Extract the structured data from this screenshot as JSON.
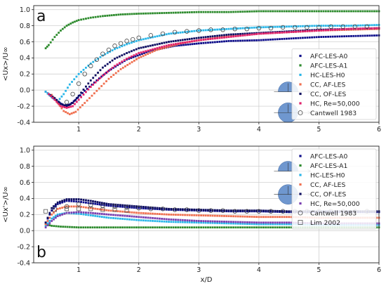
{
  "chart_data": [
    {
      "type": "scatter",
      "panel_label": "a",
      "xlabel": "",
      "ylabel": "<Ux>/U∞",
      "xlim": [
        0.25,
        6
      ],
      "ylim": [
        -0.4,
        1.05
      ],
      "xticks": [
        1,
        2,
        3,
        4,
        5,
        6
      ],
      "yticks": [
        -0.4,
        -0.2,
        0.0,
        0.2,
        0.4,
        0.6,
        0.8,
        1.0
      ],
      "tick_labels_x": [
        "1",
        "2",
        "3",
        "4",
        "5",
        "6"
      ],
      "tick_labels_y": [
        "-0.4",
        "-0.2",
        "0.0",
        "0.2",
        "0.4",
        "0.6",
        "0.8",
        "1.0"
      ],
      "grid": true,
      "legend_position": "lower-right",
      "series": [
        {
          "name": "AFC-LES-A0",
          "color": "#0d0d8a",
          "marker": "point",
          "x": [
            0.45,
            0.55,
            0.65,
            0.75,
            0.85,
            0.95,
            1.1,
            1.3,
            1.5,
            1.8,
            2.2,
            2.6,
            3.0,
            3.5,
            4.0,
            4.5,
            5.0,
            5.5,
            6.0
          ],
          "y": [
            -0.02,
            -0.08,
            -0.14,
            -0.19,
            -0.18,
            -0.12,
            -0.01,
            0.12,
            0.24,
            0.38,
            0.49,
            0.55,
            0.58,
            0.61,
            0.62,
            0.64,
            0.66,
            0.67,
            0.68
          ]
        },
        {
          "name": "AFC-LES-A1",
          "color": "#2e8b2e",
          "marker": "point",
          "x": [
            0.45,
            0.5,
            0.6,
            0.7,
            0.8,
            0.9,
            1.0,
            1.2,
            1.4,
            1.7,
            2.0,
            2.5,
            3.0,
            3.5,
            4.0,
            4.5,
            5.0,
            5.5,
            6.0
          ],
          "y": [
            0.52,
            0.56,
            0.66,
            0.74,
            0.8,
            0.84,
            0.87,
            0.9,
            0.92,
            0.94,
            0.95,
            0.96,
            0.97,
            0.97,
            0.98,
            0.98,
            0.98,
            0.98,
            0.98
          ]
        },
        {
          "name": "HC-LES-H0",
          "color": "#29b6e8",
          "marker": "point",
          "x": [
            0.45,
            0.55,
            0.65,
            0.75,
            0.85,
            1.0,
            1.2,
            1.4,
            1.6,
            1.8,
            2.0,
            2.5,
            3.0,
            3.5,
            4.0,
            4.5,
            5.0,
            5.5,
            6.0
          ],
          "y": [
            -0.02,
            -0.09,
            -0.14,
            -0.05,
            0.07,
            0.2,
            0.33,
            0.43,
            0.51,
            0.57,
            0.62,
            0.7,
            0.74,
            0.76,
            0.78,
            0.79,
            0.8,
            0.8,
            0.81
          ]
        },
        {
          "name": "CC, AF-LES",
          "color": "#f07050",
          "marker": "point",
          "x": [
            0.55,
            0.65,
            0.75,
            0.85,
            0.95,
            1.1,
            1.3,
            1.5,
            1.7,
            2.0,
            2.3,
            2.7,
            3.0,
            3.5,
            4.0,
            4.5,
            5.0,
            5.5,
            6.0
          ],
          "y": [
            -0.06,
            -0.16,
            -0.26,
            -0.3,
            -0.27,
            -0.16,
            -0.01,
            0.14,
            0.26,
            0.4,
            0.5,
            0.58,
            0.62,
            0.67,
            0.7,
            0.72,
            0.74,
            0.75,
            0.76
          ]
        },
        {
          "name": "CC, OF-LES",
          "color": "#0d0d60",
          "marker": "point",
          "x": [
            0.5,
            0.6,
            0.7,
            0.8,
            0.9,
            1.0,
            1.2,
            1.4,
            1.6,
            1.8,
            2.0,
            2.5,
            3.0,
            3.5,
            4.0,
            4.5,
            5.0,
            5.5,
            6.0
          ],
          "y": [
            -0.05,
            -0.1,
            -0.17,
            -0.2,
            -0.16,
            -0.07,
            0.12,
            0.28,
            0.39,
            0.46,
            0.52,
            0.6,
            0.65,
            0.69,
            0.71,
            0.73,
            0.75,
            0.76,
            0.77
          ]
        },
        {
          "name": "HC, Re=50,000",
          "color": "#e0206a",
          "marker": "point",
          "x": [
            0.5,
            0.6,
            0.7,
            0.8,
            0.9,
            1.0,
            1.2,
            1.4,
            1.6,
            1.8,
            2.0,
            2.5,
            3.0,
            3.5,
            4.0,
            4.5,
            5.0,
            5.5,
            6.0
          ],
          "y": [
            -0.05,
            -0.12,
            -0.2,
            -0.22,
            -0.2,
            -0.12,
            0.04,
            0.18,
            0.3,
            0.39,
            0.46,
            0.56,
            0.62,
            0.66,
            0.7,
            0.72,
            0.74,
            0.76,
            0.77
          ]
        },
        {
          "name": "Cantwell 1983",
          "color": "#444444",
          "marker": "open-circle",
          "x": [
            0.8,
            0.9,
            1.0,
            1.1,
            1.2,
            1.3,
            1.4,
            1.5,
            1.6,
            1.7,
            1.8,
            1.9,
            2.0,
            2.2,
            2.4,
            2.6,
            2.8,
            3.0,
            3.2,
            3.4,
            3.6,
            3.8,
            4.0,
            4.2,
            4.4,
            4.6,
            4.8,
            5.0,
            5.2,
            5.4,
            5.6,
            5.8
          ],
          "y": [
            -0.15,
            -0.05,
            0.08,
            0.2,
            0.3,
            0.38,
            0.45,
            0.5,
            0.55,
            0.58,
            0.61,
            0.63,
            0.65,
            0.68,
            0.7,
            0.72,
            0.73,
            0.74,
            0.75,
            0.75,
            0.76,
            0.76,
            0.77,
            0.77,
            0.78,
            0.78,
            0.78,
            0.78,
            0.79,
            0.79,
            0.79,
            0.79
          ]
        }
      ]
    },
    {
      "type": "scatter",
      "panel_label": "b",
      "xlabel": "x/D",
      "ylabel": "<Ux'>/U∞",
      "xlim": [
        0.25,
        6
      ],
      "ylim": [
        -0.4,
        1.05
      ],
      "xticks": [
        1,
        2,
        3,
        4,
        5,
        6
      ],
      "yticks": [
        -0.4,
        -0.2,
        0.0,
        0.2,
        0.4,
        0.6,
        0.8,
        1.0
      ],
      "tick_labels_x": [
        "1",
        "2",
        "3",
        "4",
        "5",
        "6"
      ],
      "tick_labels_y": [
        "-0.4",
        "-0.2",
        "0.0",
        "0.2",
        "0.4",
        "0.6",
        "0.8",
        "1.0"
      ],
      "grid": true,
      "legend_position": "upper-right",
      "series": [
        {
          "name": "AFC-LES-A0",
          "color": "#0d0d8a",
          "marker": "point",
          "x": [
            0.45,
            0.55,
            0.65,
            0.8,
            1.0,
            1.2,
            1.5,
            2.0,
            2.5,
            3.0,
            3.5,
            4.0,
            4.5,
            5.0,
            5.5,
            6.0
          ],
          "y": [
            0.1,
            0.25,
            0.33,
            0.37,
            0.36,
            0.34,
            0.31,
            0.28,
            0.26,
            0.25,
            0.24,
            0.24,
            0.23,
            0.23,
            0.23,
            0.23
          ]
        },
        {
          "name": "AFC-LES-A1",
          "color": "#2e8b2e",
          "marker": "point",
          "x": [
            0.45,
            0.55,
            0.7,
            1.0,
            1.5,
            2.0,
            2.5,
            3.0,
            3.5,
            4.0,
            4.5,
            5.0,
            5.5,
            6.0
          ],
          "y": [
            0.08,
            0.06,
            0.05,
            0.04,
            0.04,
            0.04,
            0.04,
            0.04,
            0.04,
            0.04,
            0.04,
            0.04,
            0.04,
            0.04
          ]
        },
        {
          "name": "HC-LES-H0",
          "color": "#29b6e8",
          "marker": "point",
          "x": [
            0.45,
            0.55,
            0.65,
            0.8,
            1.0,
            1.2,
            1.5,
            2.0,
            2.5,
            3.0,
            3.5,
            4.0,
            4.5,
            5.0,
            5.5,
            6.0
          ],
          "y": [
            0.06,
            0.15,
            0.2,
            0.22,
            0.21,
            0.19,
            0.16,
            0.13,
            0.11,
            0.1,
            0.09,
            0.08,
            0.08,
            0.07,
            0.07,
            0.07
          ]
        },
        {
          "name": "CC, AF-LES",
          "color": "#f07050",
          "marker": "point",
          "x": [
            0.45,
            0.55,
            0.65,
            0.8,
            1.0,
            1.2,
            1.5,
            2.0,
            2.5,
            3.0,
            3.5,
            4.0,
            4.5,
            5.0,
            5.5,
            6.0
          ],
          "y": [
            0.08,
            0.2,
            0.27,
            0.3,
            0.3,
            0.28,
            0.25,
            0.22,
            0.2,
            0.19,
            0.18,
            0.17,
            0.17,
            0.16,
            0.16,
            0.16
          ]
        },
        {
          "name": "CC, OF-LES",
          "color": "#0d0d60",
          "marker": "point",
          "x": [
            0.45,
            0.55,
            0.65,
            0.8,
            1.0,
            1.2,
            1.5,
            2.0,
            2.5,
            3.0,
            3.5,
            4.0,
            4.5,
            5.0,
            5.5,
            6.0
          ],
          "y": [
            0.1,
            0.28,
            0.35,
            0.39,
            0.39,
            0.37,
            0.33,
            0.3,
            0.27,
            0.26,
            0.25,
            0.25,
            0.24,
            0.24,
            0.24,
            0.24
          ]
        },
        {
          "name": "HC, Re=50,000",
          "color": "#7a3fb0",
          "marker": "point",
          "x": [
            0.45,
            0.55,
            0.65,
            0.8,
            1.0,
            1.2,
            1.5,
            2.0,
            2.5,
            3.0,
            3.5,
            4.0,
            4.5,
            5.0,
            5.5,
            6.0
          ],
          "y": [
            0.04,
            0.12,
            0.18,
            0.22,
            0.23,
            0.22,
            0.2,
            0.17,
            0.14,
            0.12,
            0.11,
            0.1,
            0.1,
            0.09,
            0.09,
            0.09
          ]
        },
        {
          "name": "Cantwell 1983",
          "color": "#444444",
          "marker": "open-circle",
          "x": [
            0.8,
            1.0,
            1.2,
            1.4,
            1.6,
            1.8,
            2.0,
            2.2,
            2.4,
            2.6,
            2.8,
            3.0,
            3.2,
            3.4,
            3.6,
            3.8,
            4.0,
            4.2,
            4.4,
            4.6,
            4.8,
            5.0,
            5.2,
            5.4,
            5.6,
            5.8
          ],
          "y": [
            0.3,
            0.33,
            0.32,
            0.31,
            0.3,
            0.29,
            0.28,
            0.27,
            0.27,
            0.26,
            0.26,
            0.25,
            0.25,
            0.25,
            0.24,
            0.24,
            0.24,
            0.24,
            0.24,
            0.24,
            0.24,
            0.24,
            0.24,
            0.24,
            0.24,
            0.24
          ]
        },
        {
          "name": "Lim 2002",
          "color": "#555555",
          "marker": "open-square",
          "x": [
            0.45,
            0.6,
            0.8,
            1.0,
            1.2,
            1.4,
            1.6,
            1.8
          ],
          "y": [
            0.24,
            0.26,
            0.27,
            0.27,
            0.27,
            0.26,
            0.26,
            0.25
          ]
        }
      ]
    }
  ]
}
